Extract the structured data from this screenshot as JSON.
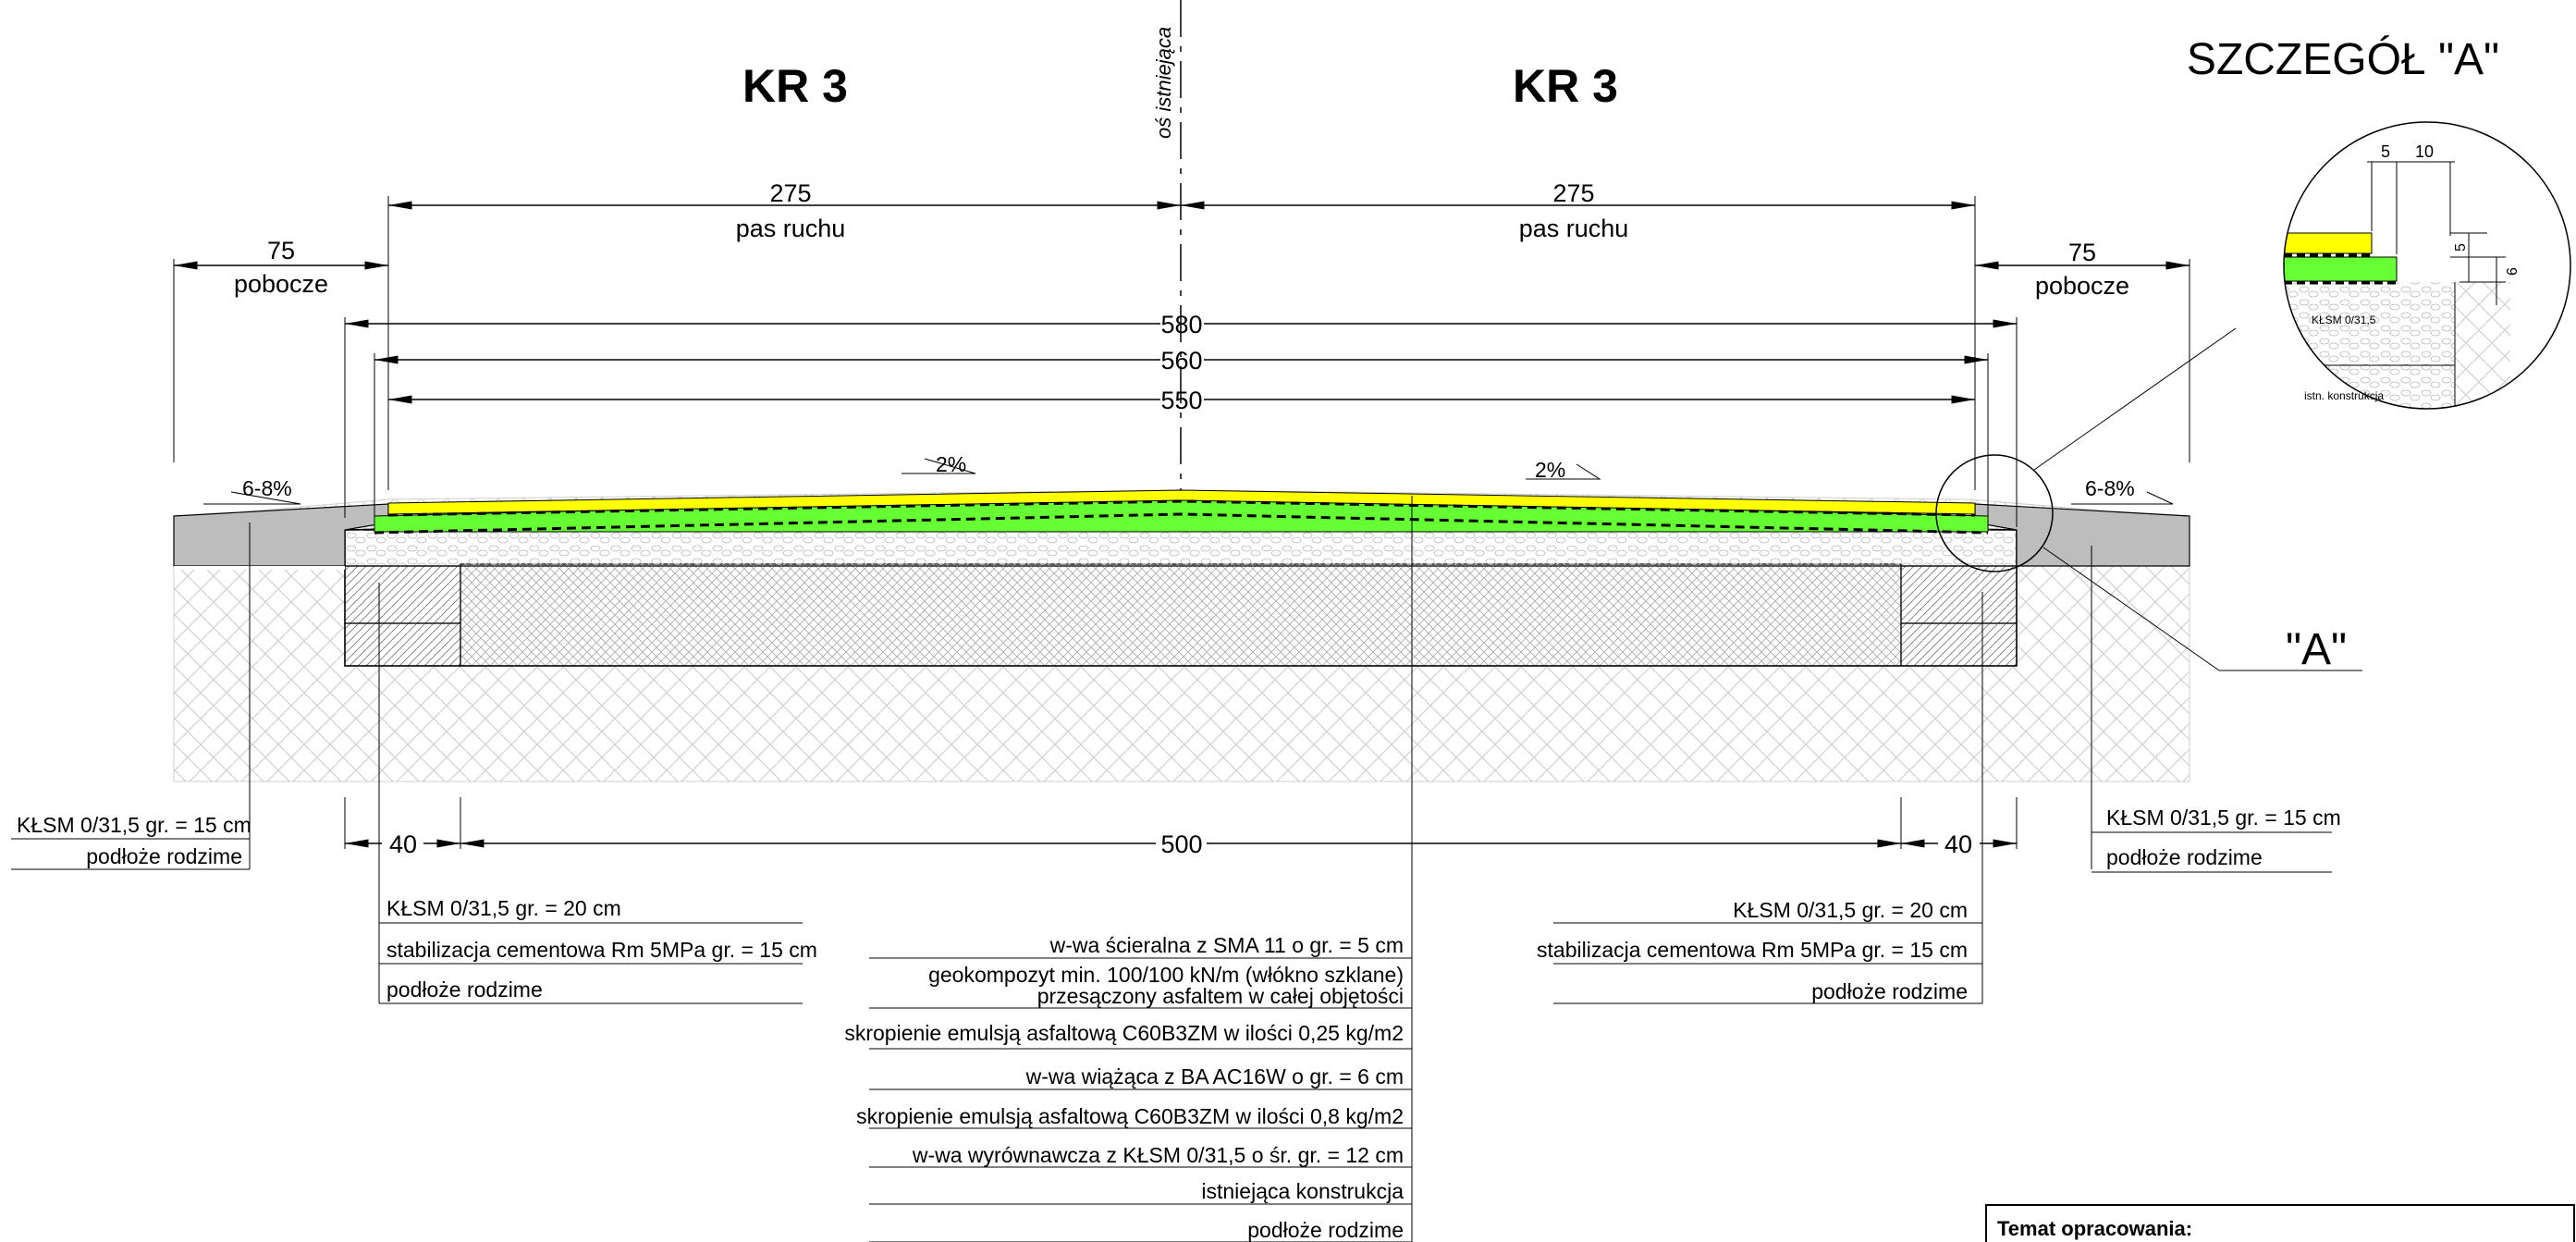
{
  "headings": {
    "left_kr": "KR 3",
    "right_kr": "KR 3",
    "axis": "oś istniejąca",
    "detail_title": "SZCZEGÓŁ \"A\"",
    "detail_marker": "\"A\""
  },
  "dimensions": {
    "lane_left": "275",
    "lane_right": "275",
    "lane_label_left": "pas ruchu",
    "lane_label_right": "pas ruchu",
    "shoulder_left": "75",
    "shoulder_right": "75",
    "shoulder_label_left": "pobocze",
    "shoulder_label_right": "pobocze",
    "w580": "580",
    "w560": "560",
    "w550": "550",
    "bottom_left": "40",
    "bottom_mid": "500",
    "bottom_right": "40",
    "slope_left": "2%",
    "slope_right": "2%",
    "shoulder_slope_left": "6-8%",
    "shoulder_slope_right": "6-8%"
  },
  "detail": {
    "d5a": "5",
    "d10": "10",
    "d5b": "5",
    "d6": "6",
    "layer1": "KŁSM 0/31,5",
    "layer2": "istn. konstrukcja"
  },
  "legends": {
    "shoulder_left": [
      "KŁSM 0/31,5 gr. = 15 cm",
      "podłoże rodzime"
    ],
    "shoulder_right": [
      "KŁSM 0/31,5 gr. = 15 cm",
      "podłoże rodzime"
    ],
    "widening_left": [
      "KŁSM 0/31,5 gr. = 20 cm",
      "stabilizacja cementowa Rm 5MPa gr. = 15 cm",
      "podłoże rodzime"
    ],
    "widening_right": [
      "KŁSM 0/31,5 gr. = 20 cm",
      "stabilizacja cementowa Rm 5MPa gr. = 15 cm",
      "podłoże rodzime"
    ],
    "center": [
      "w-wa ścieralna z SMA 11 o gr. = 5 cm",
      "geokompozyt min. 100/100 kN/m (włókno szklane)",
      "przesączony asfaltem w całej objętości",
      "skropienie emulsją asfaltową C60B3ZM w ilości 0,25 kg/m2",
      "w-wa wiążąca z BA AC16W o gr. = 6 cm",
      "skropienie emulsją asfaltową C60B3ZM w ilości 0,8 kg/m2",
      "w-wa wyrównawcza z KŁSM 0/31,5 o śr. gr. = 12 cm",
      "istniejąca konstrukcja",
      "podłoże rodzime"
    ]
  },
  "title_block": {
    "label": "Temat  opracowania:"
  },
  "colors": {
    "wearing_course": "#ffff00",
    "binder_course": "#66ff33",
    "shoulder": "#bdbdbd",
    "subgrade_hatch": "#c8c8c8"
  }
}
